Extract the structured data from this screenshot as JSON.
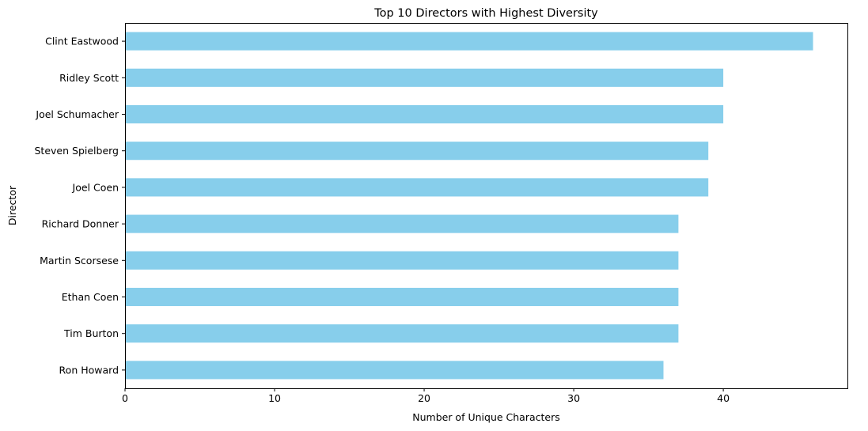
{
  "chart_data": {
    "type": "bar",
    "orientation": "horizontal",
    "title": "Top 10 Directors with Highest Diversity",
    "xlabel": "Number of Unique Characters",
    "ylabel": "Director",
    "categories": [
      "Clint Eastwood",
      "Ridley Scott",
      "Joel Schumacher",
      "Steven Spielberg",
      "Joel Coen",
      "Richard Donner",
      "Martin Scorsese",
      "Ethan Coen",
      "Tim Burton",
      "Ron Howard"
    ],
    "values": [
      46,
      40,
      40,
      39,
      39,
      37,
      37,
      37,
      37,
      36
    ],
    "xlim": [
      0,
      48.3
    ],
    "xticks": [
      0,
      10,
      20,
      30,
      40
    ],
    "bar_color": "#87ceeb",
    "grid": false,
    "legend": "none"
  }
}
